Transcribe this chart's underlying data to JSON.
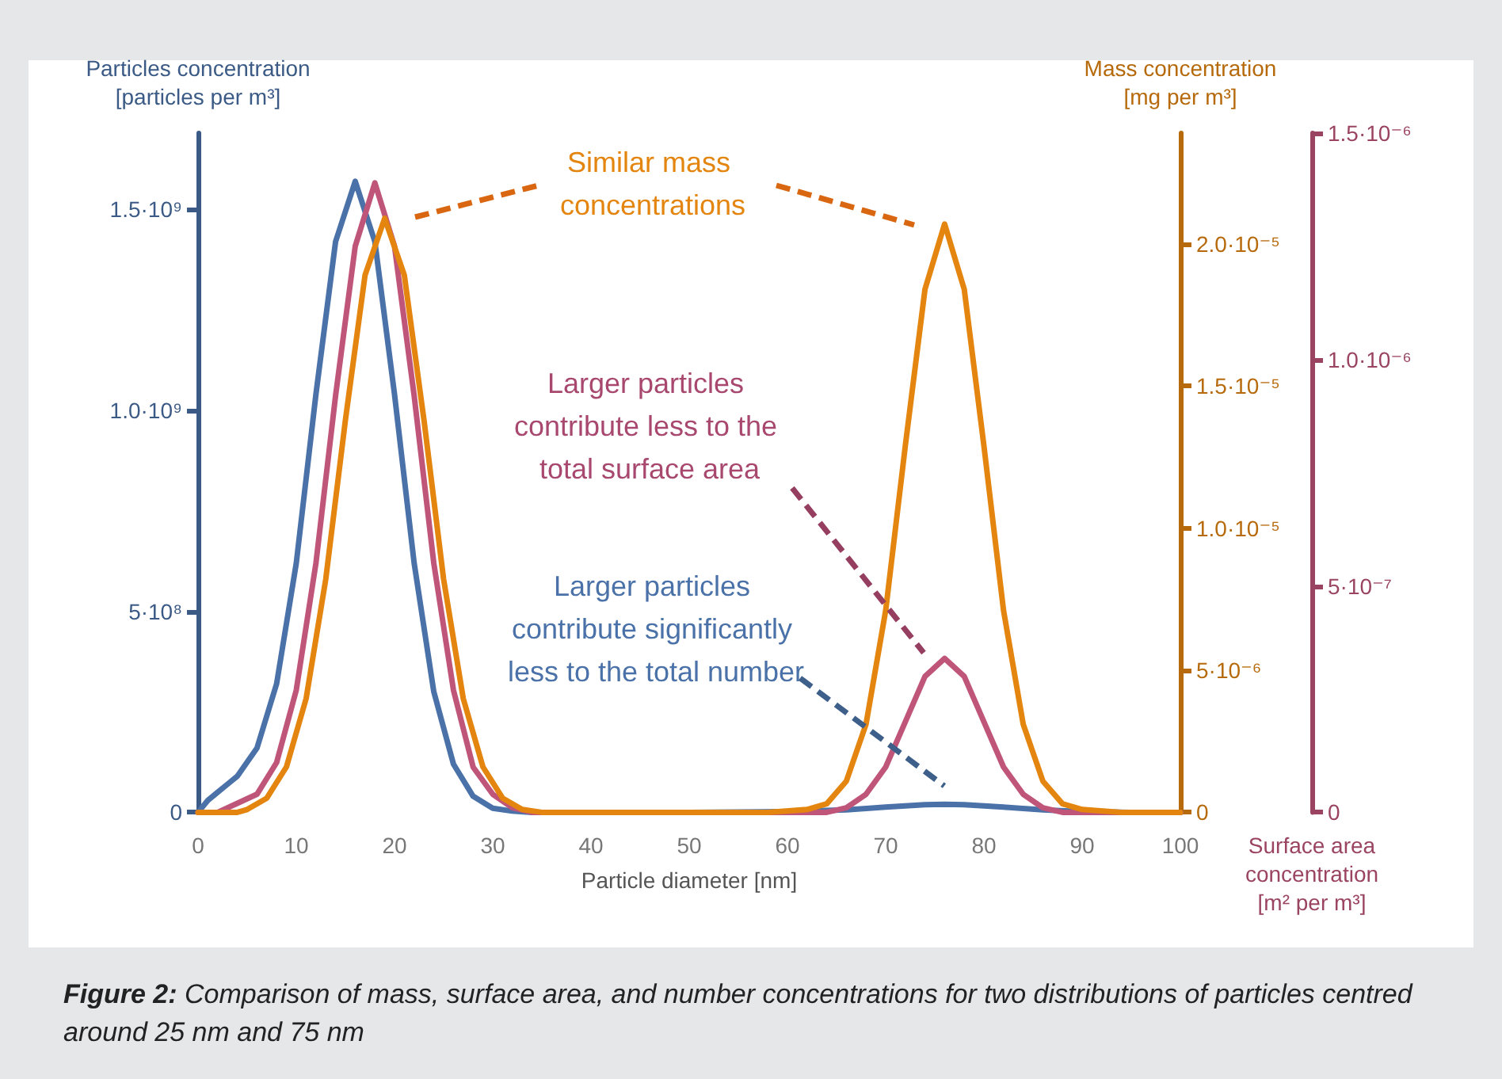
{
  "chart_data": {
    "type": "line",
    "xlabel": "Particle diameter [nm]",
    "ylabel": "Particles concentration\n[particles per m³]",
    "y2label": "Mass concentration\n[mg per m³]",
    "y3label": "Surface area\nconcentration\n[m² per m³]",
    "xlim": [
      0,
      100
    ],
    "xticks": [
      0,
      10,
      20,
      30,
      40,
      50,
      60,
      70,
      80,
      90,
      100
    ],
    "ylim": [
      0,
      1690000000
    ],
    "yticks": [
      0,
      {
        "value": 500000000,
        "label": "5·10⁸"
      },
      {
        "value": 1000000000,
        "label": "1.0·10⁹"
      },
      {
        "value": 1500000000,
        "label": "1.5·10⁹"
      }
    ],
    "y2lim": [
      0,
      2.39e-05
    ],
    "y2ticks": [
      0,
      {
        "value": 5e-06,
        "label": "5·10⁻⁶"
      },
      {
        "value": 1e-05,
        "label": "1.0·10⁻⁵"
      },
      {
        "value": 1.5e-05,
        "label": "1.5·10⁻⁵"
      },
      {
        "value": 2e-05,
        "label": "2.0·10⁻⁵"
      }
    ],
    "y3lim": [
      0,
      1.5e-06
    ],
    "y3ticks": [
      0,
      {
        "value": 5e-07,
        "label": "5·10⁻⁷"
      },
      {
        "value": 1e-06,
        "label": "1.0·10⁻⁶"
      },
      {
        "value": 1.5e-06,
        "label": "1.5·10⁻⁶"
      }
    ],
    "grid": false,
    "marker": "none",
    "line_style": "solid",
    "series": [
      {
        "color": "#4a72a8",
        "axis": "y",
        "x": [
          0,
          1,
          2,
          3,
          4,
          6,
          8,
          10,
          12,
          14,
          16,
          18,
          20,
          22,
          24,
          26,
          28,
          30,
          32,
          34,
          40,
          50,
          60,
          66,
          70,
          74,
          76,
          78,
          82,
          86,
          90,
          95,
          100
        ],
        "values": [
          0,
          30000000,
          50000000,
          70000000,
          90000000,
          160000000,
          320000000,
          620000000,
          1040000000,
          1420000000,
          1570000000,
          1420000000,
          1040000000,
          620000000,
          300000000,
          120000000,
          40000000,
          10000000,
          3000000,
          0,
          0,
          0,
          2000000,
          6000000,
          13000000,
          19000000,
          20000000,
          19000000,
          13000000,
          6000000,
          2000000,
          0,
          0
        ]
      },
      {
        "color": "#c0557a",
        "axis": "y3",
        "x": [
          0,
          2,
          4,
          6,
          8,
          10,
          12,
          14,
          16,
          18,
          20,
          22,
          24,
          26,
          28,
          30,
          32,
          34,
          36,
          60,
          62,
          64,
          66,
          68,
          70,
          72,
          74,
          76,
          78,
          80,
          82,
          84,
          86,
          88,
          90,
          100
        ],
        "values": [
          0,
          0,
          2e-08,
          4e-08,
          1.1e-07,
          2.7e-07,
          5.5e-07,
          9.2e-07,
          1.25e-06,
          1.39e-06,
          1.25e-06,
          9.2e-07,
          5.5e-07,
          2.7e-07,
          1e-07,
          4e-08,
          1e-08,
          0,
          0,
          0,
          0,
          0,
          1e-08,
          4e-08,
          1e-07,
          2e-07,
          3e-07,
          3.4e-07,
          3e-07,
          2e-07,
          1e-07,
          4e-08,
          1e-08,
          0,
          0,
          0
        ]
      },
      {
        "color": "#e3850f",
        "axis": "y2",
        "x": [
          0,
          2,
          4,
          5,
          7,
          9,
          11,
          13,
          15,
          17,
          19,
          21,
          23,
          25,
          27,
          29,
          31,
          33,
          35,
          38,
          58,
          62,
          64,
          66,
          68,
          70,
          72,
          74,
          76,
          78,
          80,
          82,
          84,
          86,
          88,
          90,
          94,
          100
        ],
        "values": [
          0,
          0,
          0,
          1e-07,
          5e-07,
          1.6e-06,
          4e-06,
          8.2e-06,
          1.38e-05,
          1.89e-05,
          2.09e-05,
          1.89e-05,
          1.38e-05,
          8.2e-06,
          4e-06,
          1.6e-06,
          5e-07,
          1e-07,
          0,
          0,
          0,
          1e-07,
          3e-07,
          1.1e-06,
          3.1e-06,
          7.1e-06,
          1.29e-05,
          1.84e-05,
          2.07e-05,
          1.84e-05,
          1.29e-05,
          7.1e-06,
          3.1e-06,
          1.1e-06,
          3e-07,
          1e-07,
          0,
          0
        ]
      }
    ],
    "annotations": [
      "Similar mass concentrations",
      "Larger particles contribute less to the total surface area",
      "Larger particles contribute significantly less to the total number",
      "Figure 2: Comparison of mass, surface area, and number concentrations for two distributions of particles centred around 25 nm and 75 nm"
    ]
  }
}
